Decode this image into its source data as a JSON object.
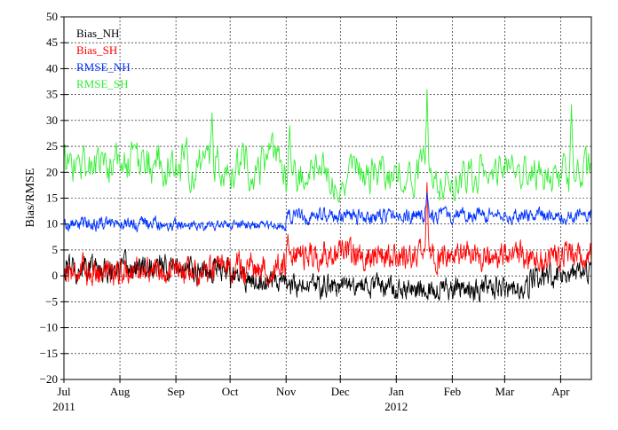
{
  "chart_data": {
    "type": "line",
    "ylabel": "Bias/RMSE",
    "xlabel": "",
    "ylim": [
      -20,
      50
    ],
    "yticks": [
      -20,
      -15,
      -10,
      -5,
      0,
      5,
      10,
      15,
      20,
      25,
      30,
      35,
      40,
      45,
      50
    ],
    "ytick_labels": [
      "−20",
      "−15",
      "−10",
      "−5",
      "0",
      "5",
      "10",
      "15",
      "20",
      "25",
      "30",
      "35",
      "40",
      "45",
      "50"
    ],
    "xlim_days": [
      0,
      292
    ],
    "x_start": "2011-07-01",
    "x_end": "2012-04-18",
    "xticks": [
      {
        "date": "2011-07-01",
        "label": "Jul",
        "year": "2011"
      },
      {
        "date": "2011-08-01",
        "label": "Aug",
        "year": ""
      },
      {
        "date": "2011-09-01",
        "label": "Sep",
        "year": ""
      },
      {
        "date": "2011-10-01",
        "label": "Oct",
        "year": ""
      },
      {
        "date": "2011-11-01",
        "label": "Nov",
        "year": ""
      },
      {
        "date": "2011-12-01",
        "label": "Dec",
        "year": ""
      },
      {
        "date": "2012-01-01",
        "label": "Jan",
        "year": "2012"
      },
      {
        "date": "2012-02-01",
        "label": "Feb",
        "year": ""
      },
      {
        "date": "2012-03-01",
        "label": "Mar",
        "year": ""
      },
      {
        "date": "2012-04-01",
        "label": "Apr",
        "year": ""
      }
    ],
    "grid": true,
    "grid_style": "dashed",
    "legend_position": "top-left",
    "series": [
      {
        "name": "Bias_NH",
        "color": "#000000",
        "points_per_day": 4,
        "segments": [
          {
            "from": "2011-07-01",
            "to": "2011-09-30",
            "mean": 1.5,
            "noise": 2.0
          },
          {
            "from": "2011-10-01",
            "to": "2011-10-31",
            "mean": -0.5,
            "noise": 1.8
          },
          {
            "from": "2011-11-01",
            "to": "2011-12-31",
            "mean": -2.0,
            "noise": 1.6
          },
          {
            "from": "2012-01-01",
            "to": "2012-03-14",
            "mean": -2.5,
            "noise": 1.7
          },
          {
            "from": "2012-03-15",
            "to": "2012-04-18",
            "mean": 0.0,
            "noise": 1.8
          }
        ]
      },
      {
        "name": "Bias_SH",
        "color": "#ff0000",
        "points_per_day": 4,
        "segments": [
          {
            "from": "2011-07-01",
            "to": "2011-09-30",
            "mean": 1.0,
            "noise": 2.0
          },
          {
            "from": "2011-10-01",
            "to": "2011-10-31",
            "mean": 1.5,
            "noise": 2.2
          },
          {
            "from": "2011-11-01",
            "to": "2011-12-31",
            "mean": 4.0,
            "noise": 2.0
          },
          {
            "from": "2012-01-01",
            "to": "2012-04-18",
            "mean": 3.8,
            "noise": 2.0
          }
        ],
        "peaks": [
          {
            "date": "2011-11-02",
            "value": 8
          },
          {
            "date": "2012-01-18",
            "value": 18
          }
        ]
      },
      {
        "name": "RMSE_NH",
        "color": "#0033ff",
        "points_per_day": 4,
        "segments": [
          {
            "from": "2011-07-01",
            "to": "2011-08-31",
            "mean": 10.0,
            "noise": 1.0
          },
          {
            "from": "2011-09-01",
            "to": "2011-10-31",
            "mean": 9.8,
            "noise": 0.7
          },
          {
            "from": "2011-11-01",
            "to": "2012-04-18",
            "mean": 11.5,
            "noise": 1.1
          }
        ],
        "peaks": [
          {
            "date": "2012-01-18",
            "value": 16
          }
        ]
      },
      {
        "name": "RMSE_SH",
        "color": "#33ee33",
        "points_per_day": 2,
        "segments": [
          {
            "from": "2011-07-01",
            "to": "2011-10-31",
            "mean": 21.5,
            "noise": 3.5
          },
          {
            "from": "2011-11-01",
            "to": "2012-04-18",
            "mean": 19.5,
            "noise": 3.2
          }
        ],
        "peaks": [
          {
            "date": "2011-09-21",
            "value": 31.5
          },
          {
            "date": "2011-11-03",
            "value": 29
          },
          {
            "date": "2012-01-18",
            "value": 36
          },
          {
            "date": "2012-04-07",
            "value": 33
          }
        ]
      }
    ]
  }
}
